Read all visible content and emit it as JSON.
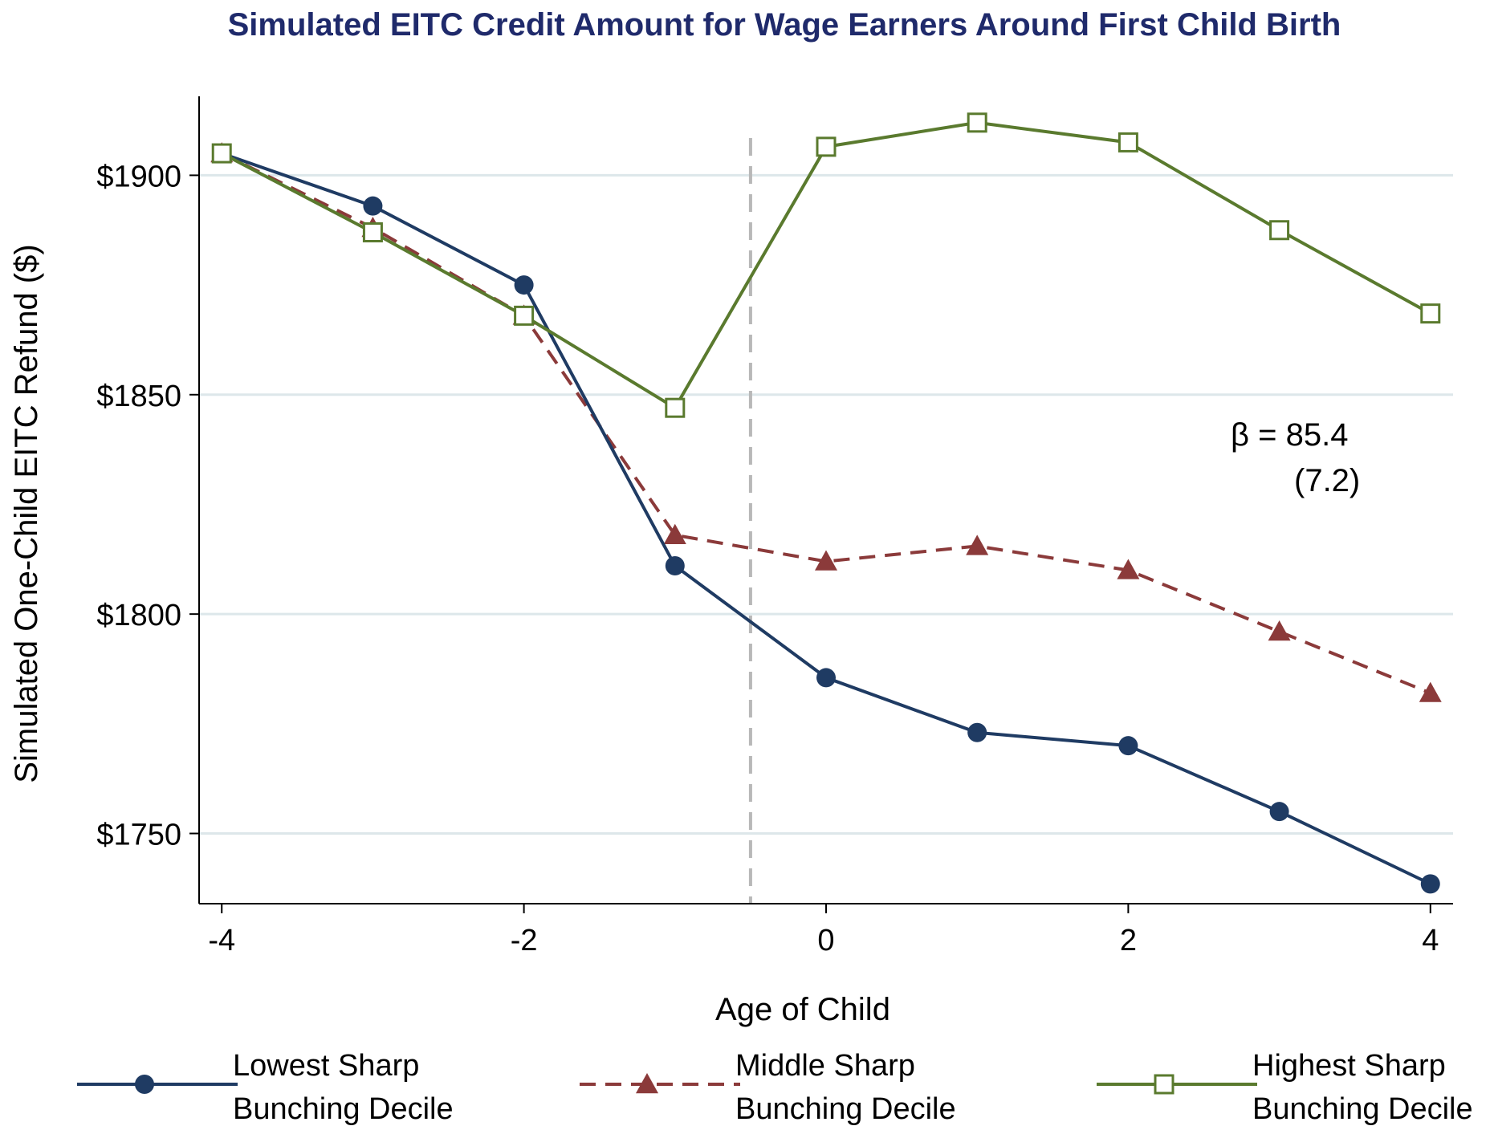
{
  "chart_data": {
    "type": "line",
    "title": "Simulated EITC Credit Amount for Wage Earners Around First Child Birth",
    "xlabel": "Age of Child",
    "ylabel": "Simulated One-Child EITC Refund ($)",
    "x": [
      -4,
      -3,
      -2,
      -1,
      0,
      1,
      2,
      3,
      4
    ],
    "xlim": [
      -4.15,
      4.15
    ],
    "ylim": [
      1734,
      1918
    ],
    "xticks": [
      -4,
      -2,
      0,
      2,
      4
    ],
    "xtick_labels": [
      "-4",
      "-2",
      "0",
      "2",
      "4"
    ],
    "yticks": [
      1750,
      1800,
      1850,
      1900
    ],
    "ytick_labels": [
      "$1750",
      "$1800",
      "$1850",
      "$1900"
    ],
    "grid": true,
    "vline_x": -0.5,
    "legend_position": "bottom",
    "annotation": {
      "line1": "β = 85.4",
      "line2": "(7.2)"
    },
    "series": [
      {
        "name": "Lowest Sharp Bunching Decile",
        "name_line1": "Lowest Sharp",
        "name_line2": "Bunching Decile",
        "color": "#1f3b63",
        "marker": "circle",
        "dash": "solid",
        "values": [
          1905,
          1893,
          1875,
          1811,
          1785.5,
          1773,
          1770,
          1755,
          1738.5
        ]
      },
      {
        "name": "Middle Sharp Bunching Decile",
        "name_line1": "Middle Sharp",
        "name_line2": "Bunching Decile",
        "color": "#8b3a3a",
        "marker": "triangle",
        "dash": "dashed",
        "values": [
          1905,
          1888,
          1868,
          1818,
          1812,
          1815.5,
          1810,
          1796,
          1782
        ]
      },
      {
        "name": "Highest Sharp Bunching Decile",
        "name_line1": "Highest Sharp",
        "name_line2": "Bunching Decile",
        "color": "#5a7a2e",
        "marker": "hollow-square",
        "dash": "solid",
        "values": [
          1905,
          1887,
          1868,
          1847,
          1906.5,
          1912,
          1907.5,
          1887.5,
          1868.5
        ]
      }
    ],
    "colors": {
      "title": "#1f2a6b",
      "grid": "#dde7ea",
      "vline": "#b8b8b8",
      "axis": "#000000"
    }
  }
}
